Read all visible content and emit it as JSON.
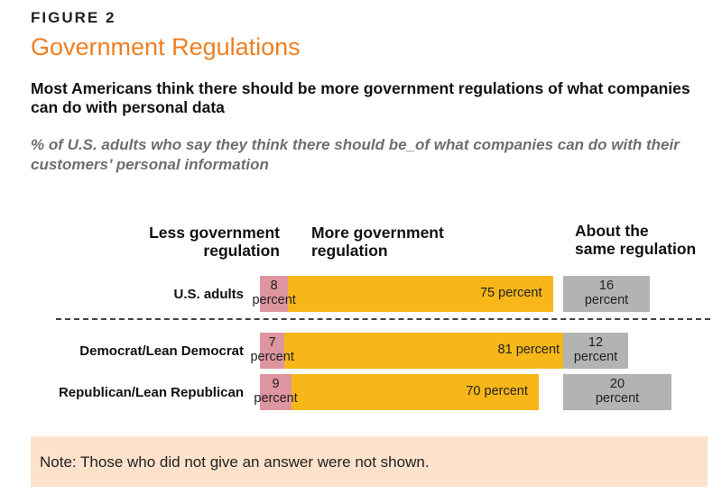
{
  "figure_label": "FIGURE 2",
  "chart_data": {
    "type": "bar",
    "orientation": "horizontal",
    "stacked": true,
    "title": "Government Regulations",
    "subtitle": "Most Americans think there should be more government regulations of what companies can do with personal data",
    "question": "% of U.S. adults who say they think there should be_of what companies can do with their customers’ personal information",
    "categories": [
      "U.S. adults",
      "Democrat/Lean Democrat",
      "Republican/Lean Republican"
    ],
    "series": [
      {
        "name": "Less government regulation",
        "values": [
          8,
          7,
          9
        ],
        "labels": [
          "8",
          "7",
          "9"
        ],
        "unit": "percent",
        "color": "#dd95a0"
      },
      {
        "name": "More government regulation",
        "values": [
          75,
          81,
          70
        ],
        "labels": [
          "75 percent",
          "81 percent",
          "70 percent"
        ],
        "color": "#f7b719"
      },
      {
        "name": "About the same regulation",
        "values": [
          16,
          12,
          20
        ],
        "labels": [
          "16",
          "12",
          "20"
        ],
        "unit": "percent",
        "color": "#b3b3b3"
      }
    ],
    "column_headers": {
      "less_line1": "Less government",
      "less_line2": "regulation",
      "more_line1": "More government",
      "more_line2": "regulation",
      "same_line1": "About the",
      "same_line2": "same regulation"
    },
    "grid": false,
    "legend": "column-headers"
  },
  "note": "Note: Those who did not give an answer were not shown."
}
